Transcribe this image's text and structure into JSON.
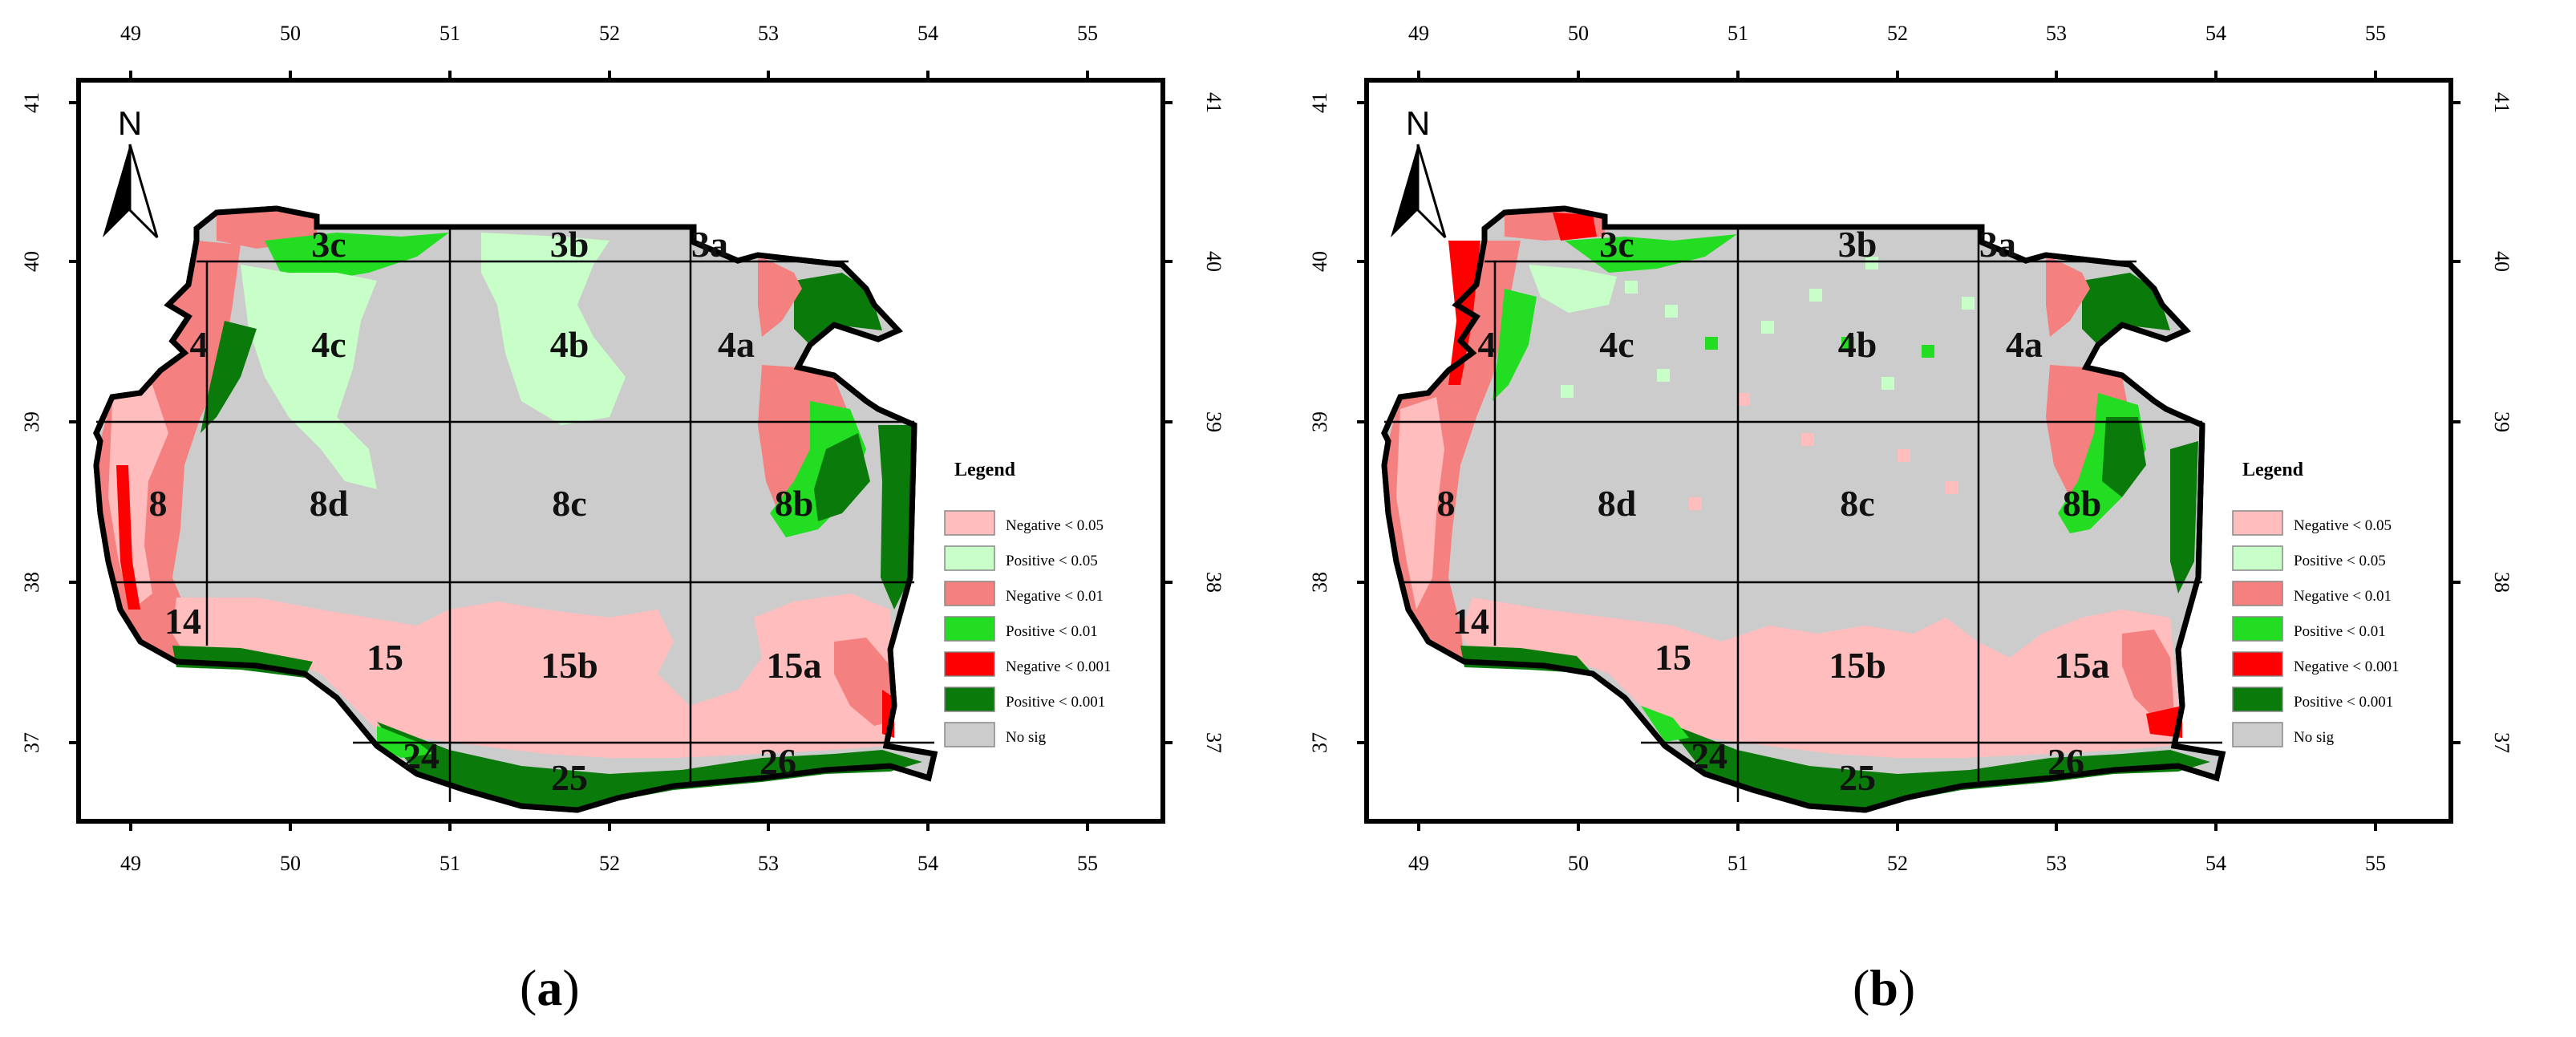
{
  "panels": [
    {
      "id": "a",
      "caption_letter": "a"
    },
    {
      "id": "b",
      "caption_letter": "b"
    }
  ],
  "map": {
    "north_label": "N",
    "lon_ticks": [
      "49",
      "50",
      "51",
      "52",
      "53",
      "54",
      "55"
    ],
    "lat_ticks": [
      "41",
      "40",
      "39",
      "38",
      "37"
    ],
    "region_labels": [
      "3c",
      "3b",
      "3a",
      "4",
      "4c",
      "4b",
      "4a",
      "8",
      "8d",
      "8c",
      "8b",
      "14",
      "15",
      "15b",
      "15a",
      "24",
      "25",
      "26"
    ]
  },
  "legend": {
    "title": "Legend",
    "items": [
      {
        "label": "Negative < 0.05",
        "color": "#ffbdbd"
      },
      {
        "label": "Positive < 0.05",
        "color": "#c8ffc8"
      },
      {
        "label": "Negative < 0.01",
        "color": "#f48080"
      },
      {
        "label": "Positive < 0.01",
        "color": "#22dd22"
      },
      {
        "label": "Negative < 0.001",
        "color": "#ff0000"
      },
      {
        "label": "Positive < 0.001",
        "color": "#0a7a0a"
      },
      {
        "label": "No sig",
        "color": "#cccccc"
      }
    ]
  }
}
